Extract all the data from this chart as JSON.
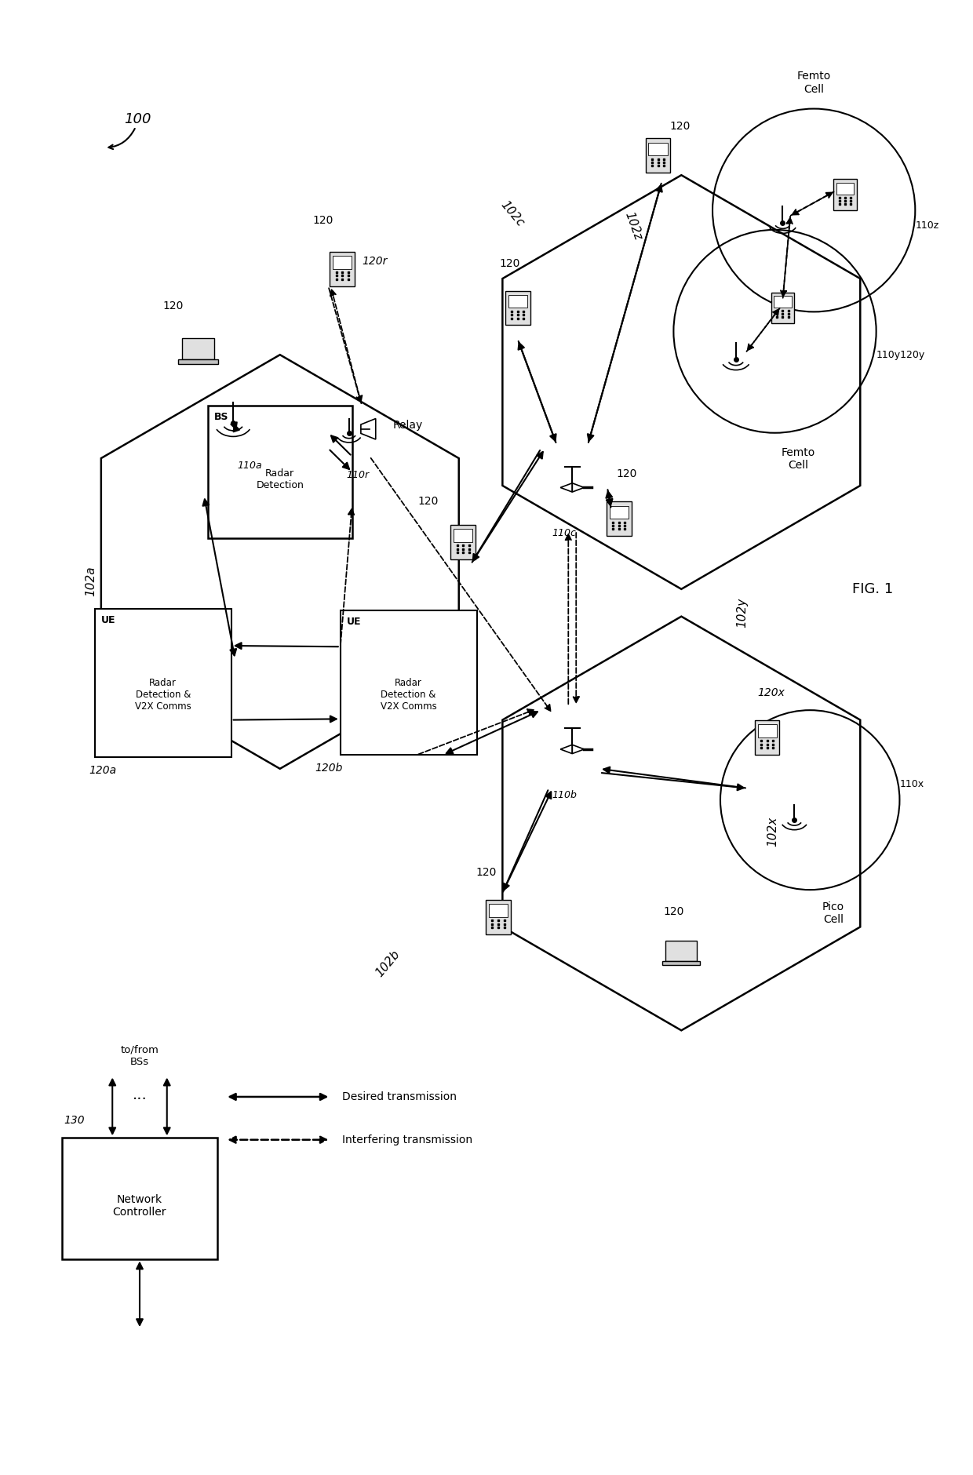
{
  "fig_width": 12.4,
  "fig_height": 18.8,
  "bg_color": "#ffffff",
  "title": "FIG. 1",
  "label_100": "100",
  "label_130": "130",
  "legend_desired": "Desired transmission",
  "legend_interfering": "Interfering transmission",
  "nc_label": "Network\nController",
  "nc_sublabel": "to/from\nBSs",
  "hex_a_label": "102a",
  "hex_b_label": "102b",
  "hex_c_label": "102c",
  "hex_z_label": "102z",
  "hex_y_label": "102y",
  "hex_b2_label": "102x",
  "bs_label": "BS",
  "bs_box_label": "Radar\nDetection",
  "ue_a_label": "UE",
  "ue_a_box_label": "Radar\nDetection &\nV2X Comms",
  "ue_b_label": "UE",
  "ue_b_box_label": "Radar\nDetection &\nV2X Comms",
  "relay_label": "Relay",
  "node_110a": "110a",
  "node_110r": "110r",
  "node_110c": "110c",
  "node_110b": "110b",
  "node_110z": "110z",
  "node_110y120y": "110y120y",
  "node_110x": "110x",
  "node_120a": "120a",
  "node_120b": "120b",
  "node_120r": "120r",
  "node_120x": "120x",
  "femto_z_label": "Femto\nCell",
  "femto_y_label": "Femto\nCell",
  "pico_label": "Pico\nCell"
}
